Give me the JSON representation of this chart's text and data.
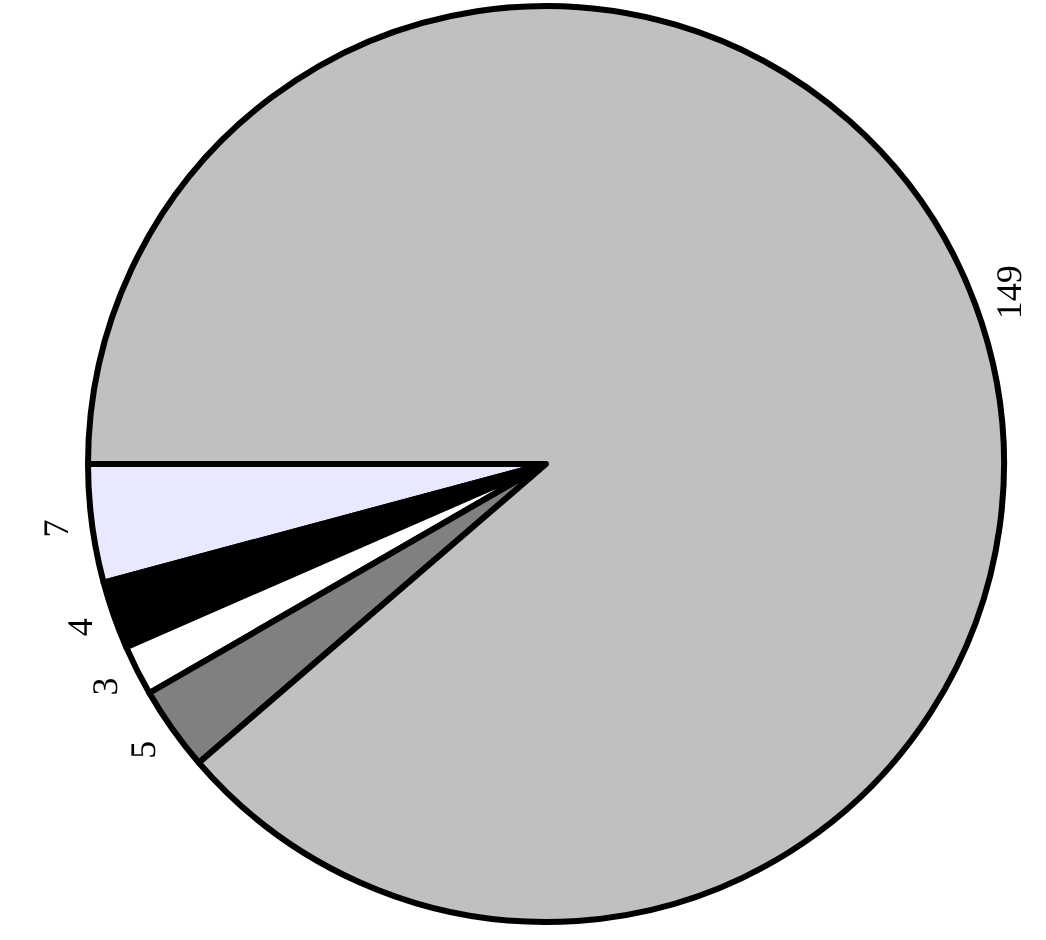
{
  "chart_data": {
    "type": "pie",
    "categories": [
      null,
      null,
      null,
      null,
      null
    ],
    "values": [
      7,
      4,
      3,
      5,
      149
    ],
    "colors": [
      "#e8e8ff",
      "#000000",
      "#ffffff",
      "#808080",
      "#c0c0c0"
    ],
    "data_labels": true
  }
}
